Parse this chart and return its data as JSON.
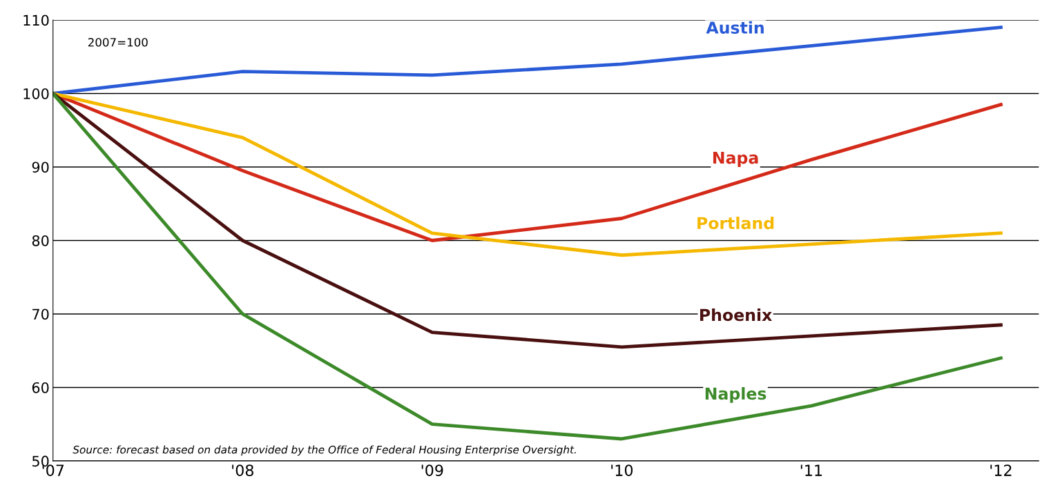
{
  "chart_data": {
    "type": "line",
    "x": [
      2007,
      2008,
      2009,
      2010,
      2011,
      2012
    ],
    "xlim": [
      2007,
      2012.2
    ],
    "xticks": [
      {
        "value": 2007,
        "label": "'07"
      },
      {
        "value": 2008,
        "label": "'08"
      },
      {
        "value": 2009,
        "label": "'09"
      },
      {
        "value": 2010,
        "label": "'10"
      },
      {
        "value": 2011,
        "label": "'11"
      },
      {
        "value": 2012,
        "label": "'12"
      }
    ],
    "ylim": [
      50,
      110
    ],
    "yticks": [
      50,
      60,
      70,
      80,
      90,
      100,
      110
    ],
    "grid": "y",
    "legend": false,
    "series": [
      {
        "name": "Austin",
        "color": "#2a5bd7",
        "values": [
          100,
          103,
          102.5,
          104,
          106.5,
          109
        ]
      },
      {
        "name": "Napa",
        "color": "#d42a1a",
        "values": [
          100,
          89.5,
          80,
          83,
          91,
          98.5
        ]
      },
      {
        "name": "Portland",
        "color": "#f5b800",
        "values": [
          100,
          94,
          81,
          78,
          79.5,
          81
        ]
      },
      {
        "name": "Phoenix",
        "color": "#4a1010",
        "values": [
          100,
          80,
          67.5,
          65.5,
          67,
          68.5
        ]
      },
      {
        "name": "Naples",
        "color": "#3d8a2a",
        "values": [
          100,
          70,
          55,
          53,
          57.5,
          64
        ]
      }
    ],
    "annotations": [
      "2007=100",
      "Source: forecast based on data provided by the Office of Federal Housing Enterprise Oversight."
    ]
  }
}
